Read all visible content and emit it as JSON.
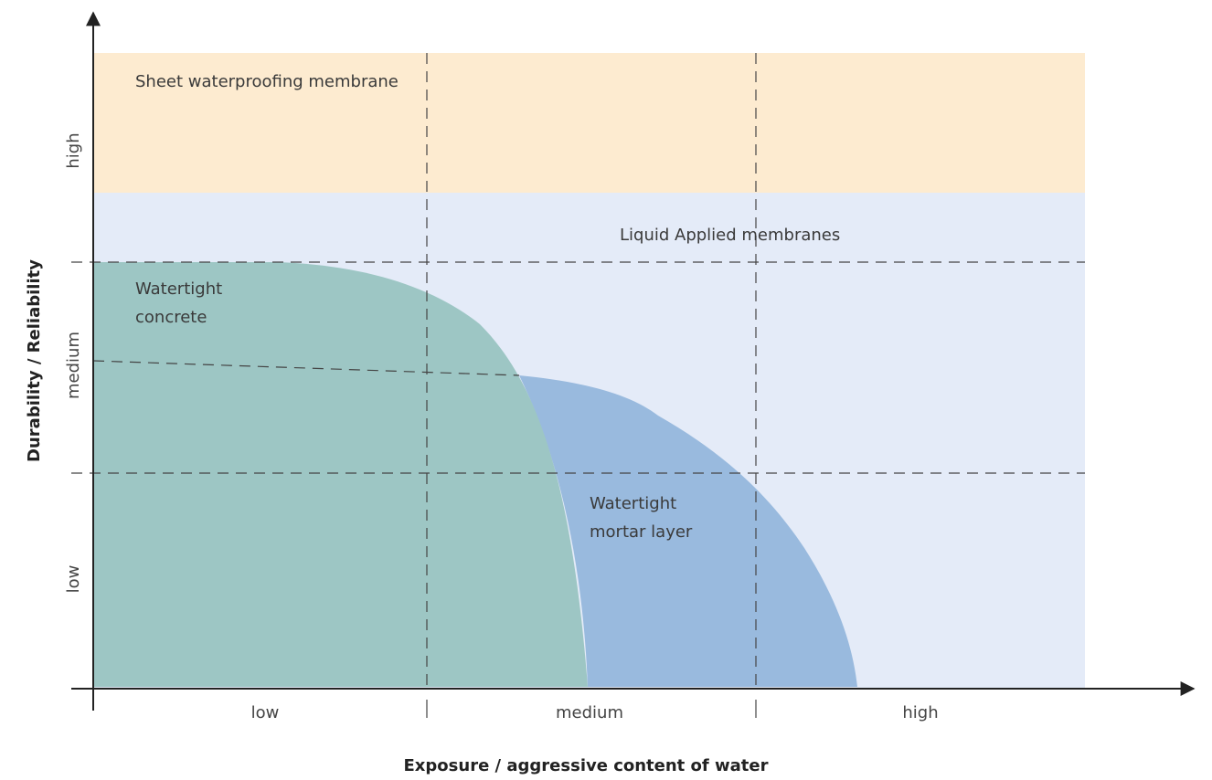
{
  "title": "",
  "axes": {
    "x_title": "Exposure / aggressive content of water",
    "y_title": "Durability / Reliability",
    "x_ticks": [
      "low",
      "medium",
      "high"
    ],
    "y_ticks": [
      "low",
      "medium",
      "high"
    ]
  },
  "zones": {
    "sheet": "Sheet waterproofing membrane",
    "liquid": "Liquid Applied membranes",
    "concrete": [
      "Watertight",
      "concrete"
    ],
    "mortar": [
      "Watertight",
      "mortar layer"
    ]
  },
  "colors": {
    "sheet": "#fdebd0",
    "liquid": "#e4ebf8",
    "concrete": "#9dc6c4",
    "mortar": "#99bade",
    "axis": "#222222",
    "dash": "#444444"
  }
}
